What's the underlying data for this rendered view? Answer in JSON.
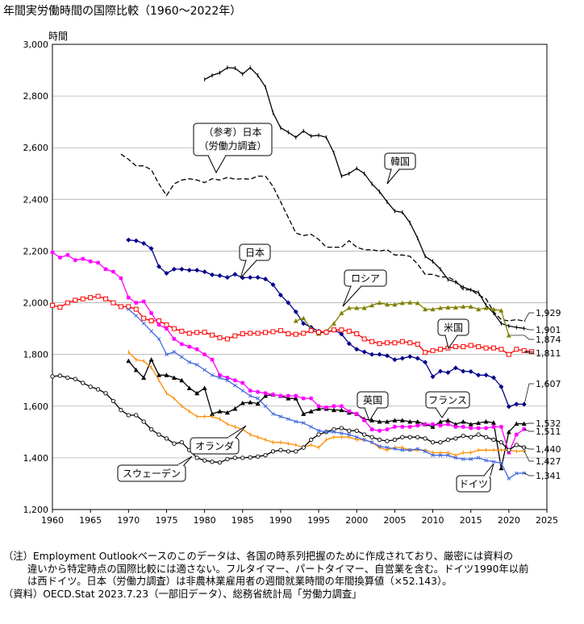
{
  "chart_data": {
    "type": "line",
    "title": "年間実労働時間の国際比較（1960～2022年）",
    "ylabel": "時間",
    "xlabel": "",
    "xlim": [
      1960,
      2025
    ],
    "ylim": [
      1200,
      3000
    ],
    "x_ticks": [
      1960,
      1965,
      1970,
      1975,
      1980,
      1985,
      1990,
      1995,
      2000,
      2005,
      2010,
      2015,
      2020,
      2025
    ],
    "y_ticks": [
      1200,
      1400,
      1600,
      1800,
      2000,
      2200,
      2400,
      2600,
      2800,
      3000
    ],
    "x_tick_labels": [
      "1960",
      "1965",
      "1970",
      "1975",
      "1980",
      "1985",
      "1990",
      "1995",
      "2000",
      "2005",
      "2010",
      "2015",
      "2020",
      "2025"
    ],
    "y_tick_labels": [
      "1,200",
      "1,400",
      "1,600",
      "1,800",
      "2,000",
      "2,200",
      "2,400",
      "2,600",
      "2,800",
      "3,000"
    ],
    "series": [
      {
        "name": "韓国",
        "color": "#000000",
        "dash": "",
        "marker": "dash",
        "x_start": 1980,
        "values": [
          2864,
          2880,
          2890,
          2910,
          2908,
          2885,
          2910,
          2880,
          2835,
          2735,
          2677,
          2660,
          2640,
          2665,
          2645,
          2648,
          2640,
          2580,
          2490,
          2500,
          2520,
          2500,
          2460,
          2430,
          2390,
          2355,
          2350,
          2310,
          2250,
          2180,
          2160,
          2130,
          2090,
          2080,
          2060,
          2050,
          2040,
          1990,
          1960,
          1920,
          1910,
          1905,
          1901
        ],
        "end_label": "1,901"
      },
      {
        "name": "（参考）日本（労働力調査）",
        "color": "#000000",
        "dash": "6,3",
        "marker": "none",
        "x_start": 1969,
        "values": [
          2575,
          2555,
          2530,
          2530,
          2515,
          2460,
          2415,
          2460,
          2475,
          2480,
          2475,
          2465,
          2480,
          2475,
          2485,
          2478,
          2480,
          2478,
          2490,
          2490,
          2450,
          2390,
          2330,
          2270,
          2260,
          2265,
          2245,
          2215,
          2215,
          2215,
          2240,
          2215,
          2205,
          2205,
          2200,
          2205,
          2185,
          2185,
          2180,
          2150,
          2110,
          2110,
          2100,
          2100,
          2085,
          2050,
          2050,
          2030,
          2015,
          1965,
          1935,
          1930,
          1935,
          1929
        ],
        "end_label": "1,929"
      },
      {
        "name": "日本",
        "color": "#00008B",
        "dash": "",
        "marker": "diamond",
        "x_start": 1970,
        "values": [
          2243,
          2240,
          2230,
          2210,
          2140,
          2114,
          2130,
          2130,
          2126,
          2126,
          2120,
          2108,
          2105,
          2098,
          2110,
          2097,
          2098,
          2098,
          2092,
          2070,
          2030,
          2000,
          1965,
          1920,
          1905,
          1890,
          1884,
          1895,
          1879,
          1842,
          1820,
          1810,
          1800,
          1800,
          1795,
          1780,
          1785,
          1792,
          1785,
          1770,
          1714,
          1735,
          1730,
          1748,
          1735,
          1734,
          1720,
          1720,
          1710,
          1675,
          1598,
          1608,
          1607
        ],
        "end_label": "1,607"
      },
      {
        "name": "ロシア",
        "color": "#808000",
        "dash": "",
        "marker": "triangle",
        "x_start": 1992,
        "values": [
          1930,
          1940,
          1900,
          1880,
          1890,
          1920,
          1960,
          1980,
          1980,
          1980,
          1990,
          2000,
          1993,
          1993,
          1999,
          2001,
          1999,
          1975,
          1975,
          1980,
          1982,
          1982,
          1985,
          1985,
          1975,
          1980,
          1975,
          1970,
          1874
        ],
        "end_label": "1,874"
      },
      {
        "name": "米国",
        "color": "#FF0000",
        "dash": "",
        "marker": "square",
        "x_start": 1960,
        "values": [
          1990,
          1983,
          2000,
          2010,
          2015,
          2020,
          2025,
          2015,
          2000,
          1985,
          1985,
          1975,
          1940,
          1930,
          1930,
          1915,
          1900,
          1890,
          1882,
          1885,
          1886,
          1875,
          1865,
          1860,
          1872,
          1880,
          1882,
          1882,
          1885,
          1888,
          1892,
          1880,
          1878,
          1882,
          1892,
          1886,
          1886,
          1895,
          1895,
          1890,
          1880,
          1860,
          1850,
          1842,
          1845,
          1845,
          1850,
          1845,
          1840,
          1808,
          1815,
          1820,
          1825,
          1830,
          1830,
          1835,
          1830,
          1825,
          1825,
          1820,
          1800,
          1820,
          1815,
          1811
        ],
        "end_label": "1,811"
      },
      {
        "name": "英国",
        "color": "#000000",
        "dash": "",
        "marker": "triangle",
        "x_start": 1970,
        "values": [
          1775,
          1740,
          1710,
          1780,
          1720,
          1720,
          1710,
          1700,
          1670,
          1650,
          1670,
          1570,
          1580,
          1575,
          1590,
          1612,
          1615,
          1610,
          1640,
          1645,
          1640,
          1630,
          1630,
          1570,
          1580,
          1590,
          1590,
          1585,
          1585,
          1575,
          1570,
          1550,
          1545,
          1540,
          1540,
          1545,
          1545,
          1540,
          1540,
          1530,
          1520,
          1540,
          1545,
          1530,
          1540,
          1530,
          1535,
          1540,
          1536,
          1360,
          1500,
          1532,
          1532
        ],
        "end_label": "1,532"
      },
      {
        "name": "フランス",
        "color": "#FF00FF",
        "dash": "",
        "marker": "star",
        "x_start": 1960,
        "values": [
          2195,
          2175,
          2185,
          2165,
          2170,
          2160,
          2155,
          2130,
          2120,
          2095,
          2020,
          2000,
          2005,
          1960,
          1915,
          1900,
          1860,
          1840,
          1830,
          1820,
          1800,
          1780,
          1720,
          1710,
          1700,
          1690,
          1660,
          1655,
          1650,
          1645,
          1640,
          1640,
          1640,
          1630,
          1630,
          1600,
          1595,
          1600,
          1600,
          1580,
          1570,
          1545,
          1510,
          1505,
          1510,
          1520,
          1520,
          1520,
          1525,
          1530,
          1530,
          1525,
          1530,
          1520,
          1520,
          1515,
          1515,
          1515,
          1520,
          1520,
          1420,
          1490,
          1511
        ],
        "end_label": "1,511"
      },
      {
        "name": "オランダ",
        "color": "#FF8C00",
        "dash": "",
        "marker": "dash",
        "x_start": 1970,
        "values": [
          1810,
          1780,
          1775,
          1750,
          1700,
          1650,
          1630,
          1600,
          1580,
          1560,
          1560,
          1560,
          1550,
          1530,
          1520,
          1510,
          1490,
          1480,
          1470,
          1460,
          1460,
          1455,
          1450,
          1440,
          1450,
          1440,
          1470,
          1480,
          1480,
          1480,
          1470,
          1470,
          1460,
          1440,
          1430,
          1440,
          1440,
          1430,
          1430,
          1430,
          1420,
          1420,
          1420,
          1410,
          1420,
          1420,
          1430,
          1430,
          1430,
          1430,
          1430,
          1425,
          1427
        ],
        "end_label": "1,427"
      },
      {
        "name": "スウェーデン",
        "color": "#000000",
        "dash": "",
        "marker": "circle",
        "x_start": 1960,
        "values": [
          1715,
          1718,
          1710,
          1705,
          1690,
          1675,
          1665,
          1650,
          1620,
          1585,
          1565,
          1565,
          1540,
          1510,
          1490,
          1475,
          1455,
          1460,
          1430,
          1400,
          1390,
          1385,
          1382,
          1395,
          1400,
          1400,
          1402,
          1405,
          1410,
          1425,
          1430,
          1425,
          1425,
          1440,
          1470,
          1490,
          1500,
          1510,
          1515,
          1505,
          1505,
          1490,
          1480,
          1470,
          1465,
          1470,
          1480,
          1480,
          1480,
          1475,
          1460,
          1460,
          1470,
          1475,
          1485,
          1480,
          1490,
          1480,
          1470,
          1460,
          1430,
          1450,
          1440
        ],
        "end_label": "1,440"
      },
      {
        "name": "ドイツ",
        "color": "#4169E1",
        "dash": "",
        "marker": "cross",
        "x_start": 1970,
        "values": [
          1975,
          1950,
          1920,
          1890,
          1860,
          1800,
          1810,
          1790,
          1770,
          1760,
          1740,
          1720,
          1710,
          1700,
          1680,
          1660,
          1640,
          1630,
          1600,
          1570,
          1560,
          1550,
          1540,
          1535,
          1520,
          1505,
          1500,
          1500,
          1495,
          1490,
          1480,
          1470,
          1460,
          1445,
          1440,
          1435,
          1430,
          1430,
          1435,
          1425,
          1410,
          1410,
          1410,
          1400,
          1395,
          1395,
          1400,
          1390,
          1385,
          1380,
          1320,
          1340,
          1341
        ],
        "end_label": "1,341"
      }
    ],
    "callouts": [
      {
        "key": "jpref_a",
        "text": "（参考）日本"
      },
      {
        "key": "jpref_b",
        "text": "（労働力調査）"
      },
      {
        "key": "korea",
        "text": "韓国"
      },
      {
        "key": "japan",
        "text": "日本"
      },
      {
        "key": "russia",
        "text": "ロシア"
      },
      {
        "key": "usa",
        "text": "米国"
      },
      {
        "key": "uk",
        "text": "英国"
      },
      {
        "key": "france",
        "text": "フランス"
      },
      {
        "key": "netherlands",
        "text": "オランダ"
      },
      {
        "key": "sweden",
        "text": "スウェーデン"
      },
      {
        "key": "germany",
        "text": "ドイツ"
      }
    ]
  },
  "notes": {
    "line1": "（注）Employment Outlookベースのこのデータは、各国の時系列把握のために作成されており、厳密には資料の",
    "line2": "違いから特定時点の国際比較には適さない。フルタイマー、パートタイマー、自営業を含む。ドイツ1990年以前",
    "line3": "は西ドイツ。日本（労働力調査）は非農林業雇用者の週間就業時間の年間換算値（×52.143）。",
    "line4": "（資料）OECD.Stat 2023.7.23（一部旧データ）、総務省統計局「労働力調査」"
  }
}
